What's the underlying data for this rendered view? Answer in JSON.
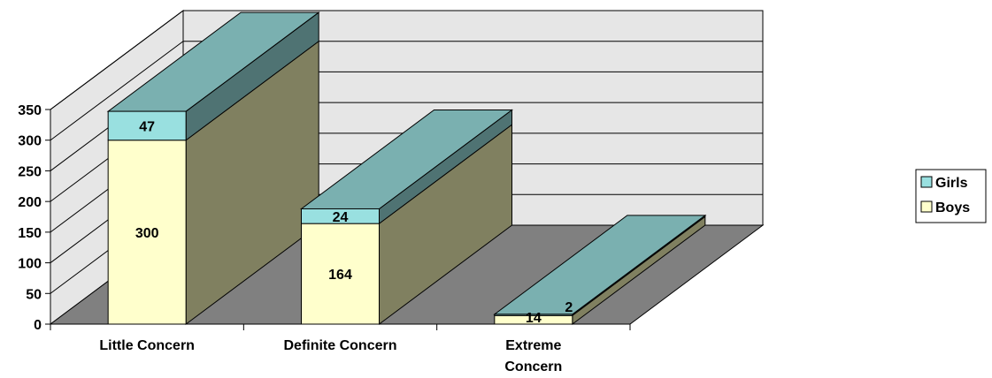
{
  "chart_data": {
    "type": "bar",
    "stacked": true,
    "three_d": true,
    "categories": [
      "Little Concern",
      "Definite Concern",
      "Extreme Concern"
    ],
    "series": [
      {
        "name": "Boys",
        "values": [
          300,
          164,
          14
        ],
        "color": "#FFFFCC"
      },
      {
        "name": "Girls",
        "values": [
          47,
          24,
          2
        ],
        "color": "#99E0E0"
      }
    ],
    "ylim": [
      0,
      350
    ],
    "yticks": [
      0,
      50,
      100,
      150,
      200,
      250,
      300,
      350
    ],
    "grid": true,
    "legend_position": "right",
    "legend_order": [
      "Girls",
      "Boys"
    ],
    "colors": {
      "floor": "#808080",
      "back_wall": "#E6E6E6",
      "side_wall": "#E6E6E6",
      "bar_side": "#808060",
      "bar_top_girls": "#7AB0B0",
      "bar_side_girls": "#4F7373"
    }
  }
}
